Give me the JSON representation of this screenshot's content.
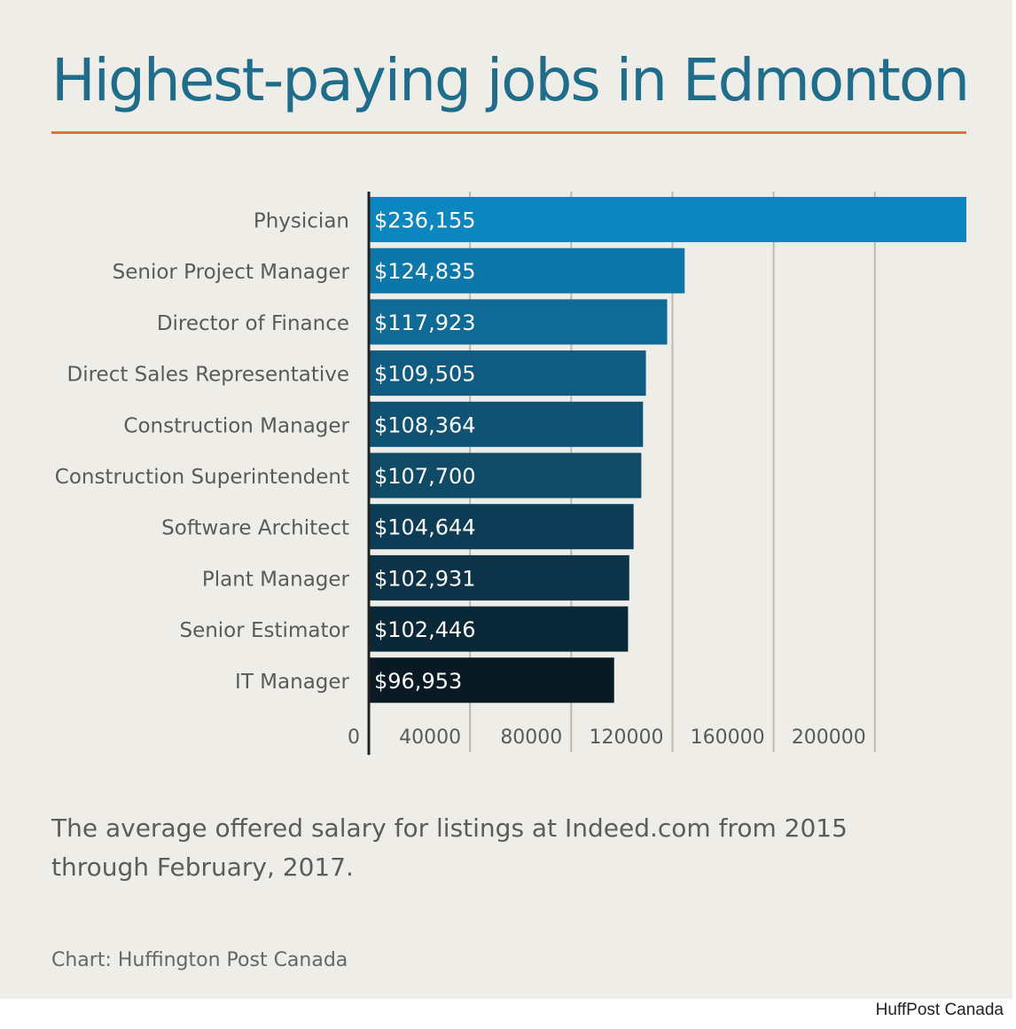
{
  "title": "Highest-paying jobs in Edmonton",
  "caption": "The average offered salary for listings at Indeed.com from 2015 through February, 2017.",
  "credit": "Chart: Huffington Post Canada",
  "watermark": "HuffPost Canada",
  "colors": {
    "background": "#efede8",
    "title": "#1f6d8a",
    "title_rule": "#d9733f",
    "bar_top": "#0c86bf",
    "bar_bottom": "#0a1922",
    "gridline": "#bdbab3",
    "label": "#5a5a5a"
  },
  "chart_data": {
    "type": "bar",
    "orientation": "horizontal",
    "title": "Highest-paying jobs in Edmonton",
    "categories": [
      "Physician",
      "Senior Project Manager",
      "Director of Finance",
      "Direct Sales Representative",
      "Construction Manager",
      "Construction Superintendent",
      "Software Architect",
      "Plant Manager",
      "Senior Estimator",
      "IT Manager"
    ],
    "values": [
      236155,
      124835,
      117923,
      109505,
      108364,
      107700,
      104644,
      102931,
      102446,
      96953
    ],
    "value_labels": [
      "$236,155",
      "$124,835",
      "$117,923",
      "$109,505",
      "$108,364",
      "$107,700",
      "$104,644",
      "$102,931",
      "$102,446",
      "$96,953"
    ],
    "bar_colors": [
      "#0c86bf",
      "#0e77aa",
      "#0f6a96",
      "#105b81",
      "#0f5273",
      "#0f4a67",
      "#0d3d56",
      "#0c3347",
      "#0a2938",
      "#0a1a24"
    ],
    "xticks": [
      0,
      40000,
      80000,
      120000,
      160000,
      200000
    ],
    "xtick_labels": [
      "0",
      "40000",
      "80000",
      "120000",
      "160000",
      "200000"
    ],
    "xlim": [
      0,
      236155
    ],
    "xlabel": "",
    "ylabel": "",
    "grid": true
  }
}
